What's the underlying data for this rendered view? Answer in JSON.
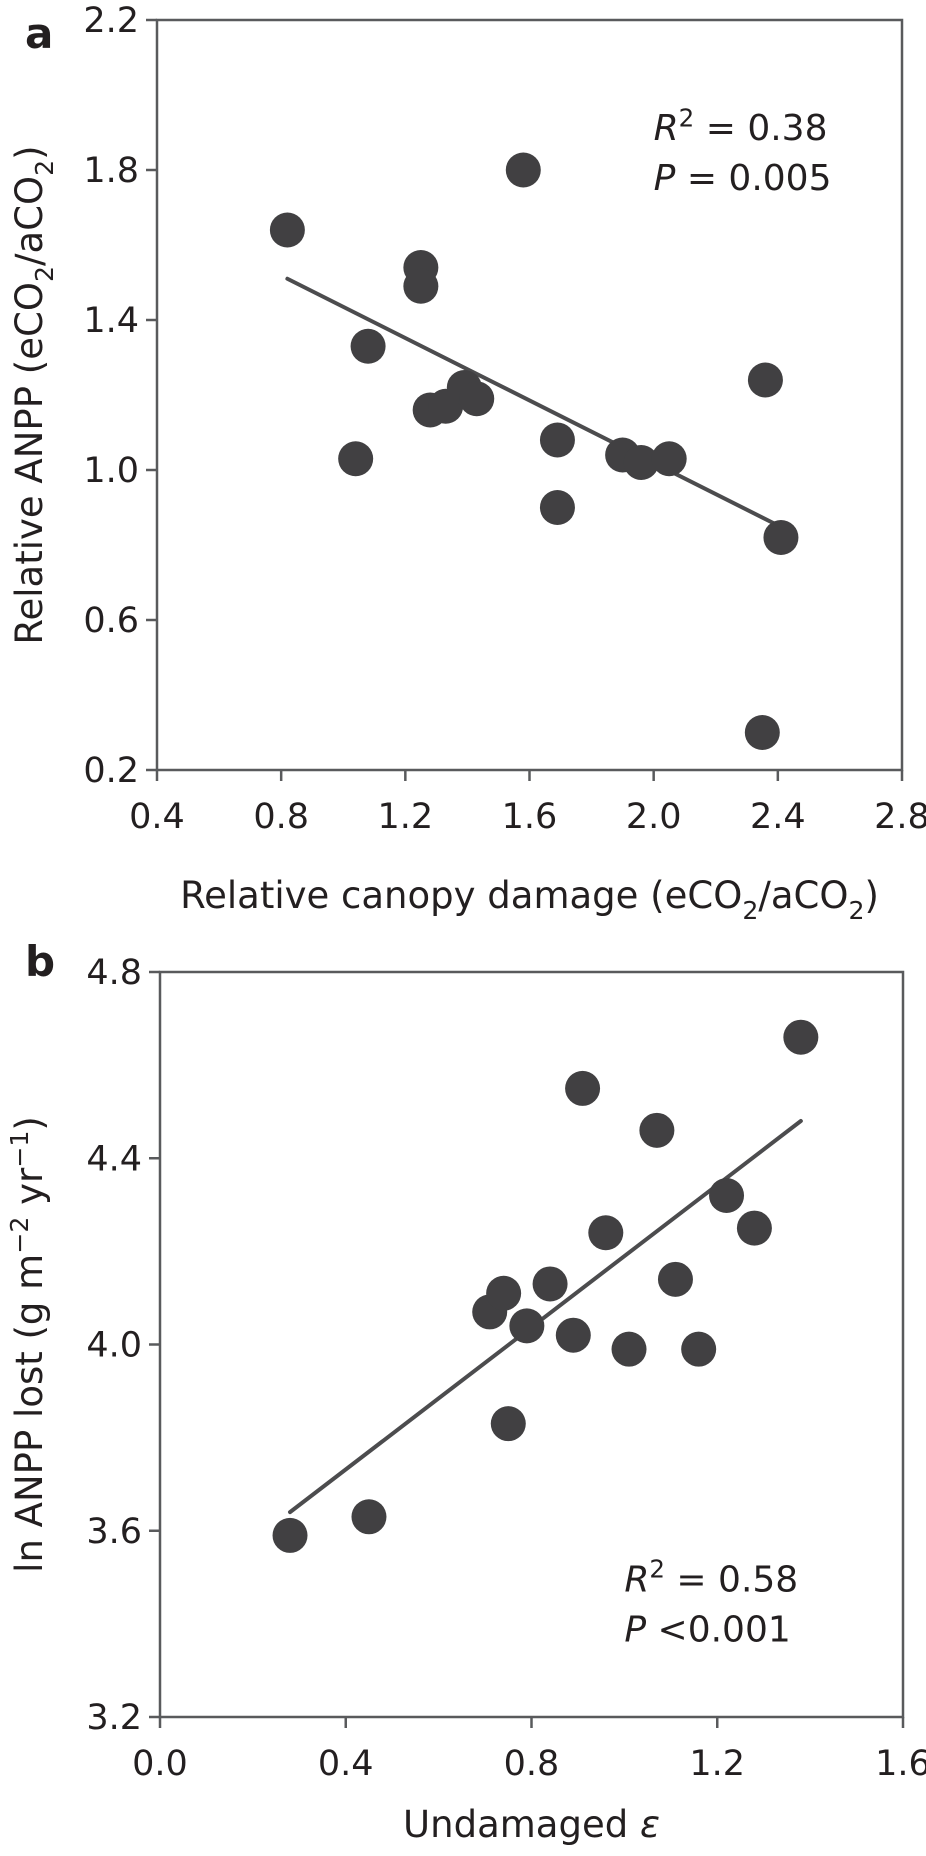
{
  "figure": {
    "colors": {
      "background": "#ffffff",
      "marker": "#414042",
      "regression_line": "#4c4c4e",
      "frame": "#595a5c",
      "text": "#231f20"
    }
  },
  "chart_data": [
    {
      "type": "scatter",
      "panel_label": "a",
      "xlabel_tokens": [
        {
          "t": "Relative canopy damage (eCO"
        },
        {
          "t": "2",
          "s": "sub"
        },
        {
          "t": "/aCO"
        },
        {
          "t": "2",
          "s": "sub"
        },
        {
          "t": ")"
        }
      ],
      "ylabel_tokens": [
        {
          "t": "Relative ANPP (eCO"
        },
        {
          "t": "2",
          "s": "sub"
        },
        {
          "t": "/aCO"
        },
        {
          "t": "2",
          "s": "sub"
        },
        {
          "t": ")"
        }
      ],
      "xlim": [
        0.4,
        2.8
      ],
      "ylim": [
        0.2,
        2.2
      ],
      "x_ticks": [
        {
          "v": 0.4,
          "label": "0.4"
        },
        {
          "v": 0.8,
          "label": "0.8"
        },
        {
          "v": 1.2,
          "label": "1.2"
        },
        {
          "v": 1.6,
          "label": "1.6"
        },
        {
          "v": 2.0,
          "label": "2.0"
        },
        {
          "v": 2.4,
          "label": "2.4"
        },
        {
          "v": 2.8,
          "label": "2.8"
        }
      ],
      "y_ticks": [
        {
          "v": 0.2,
          "label": "0.2"
        },
        {
          "v": 0.6,
          "label": "0.6"
        },
        {
          "v": 1.0,
          "label": "1.0"
        },
        {
          "v": 1.4,
          "label": "1.4"
        },
        {
          "v": 1.8,
          "label": "1.8"
        },
        {
          "v": 2.2,
          "label": "2.2"
        }
      ],
      "points": [
        [
          0.82,
          1.64
        ],
        [
          1.08,
          1.33
        ],
        [
          1.04,
          1.03
        ],
        [
          1.25,
          1.54
        ],
        [
          1.25,
          1.49
        ],
        [
          1.28,
          1.16
        ],
        [
          1.33,
          1.17
        ],
        [
          1.39,
          1.22
        ],
        [
          1.43,
          1.19
        ],
        [
          1.58,
          1.8
        ],
        [
          1.69,
          1.08
        ],
        [
          1.69,
          0.9
        ],
        [
          1.9,
          1.04
        ],
        [
          1.96,
          1.02
        ],
        [
          2.05,
          1.03
        ],
        [
          2.36,
          1.24
        ],
        [
          2.41,
          0.82
        ],
        [
          2.35,
          0.3
        ]
      ],
      "regression_line": {
        "x1": 0.82,
        "y1": 1.51,
        "x2": 2.43,
        "y2": 0.84
      },
      "annotation": {
        "anchor": [
          2.0,
          1.88
        ],
        "lines": [
          [
            {
              "t": "R",
              "s": "i"
            },
            {
              "t": "2",
              "s": "sup"
            },
            {
              "t": " = 0.38"
            }
          ],
          [
            {
              "t": "P",
              "s": "i"
            },
            {
              "t": " = 0.005"
            }
          ]
        ]
      }
    },
    {
      "type": "scatter",
      "panel_label": "b",
      "xlabel_tokens": [
        {
          "t": "Undamaged "
        },
        {
          "t": "ε",
          "s": "i"
        }
      ],
      "ylabel_tokens": [
        {
          "t": "ln ANPP lost (g m"
        },
        {
          "t": "−2",
          "s": "sup"
        },
        {
          "t": " yr"
        },
        {
          "t": "−1",
          "s": "sup"
        },
        {
          "t": ")"
        }
      ],
      "xlim": [
        0.0,
        1.6
      ],
      "ylim": [
        3.2,
        4.8
      ],
      "x_ticks": [
        {
          "v": 0.0,
          "label": "0.0"
        },
        {
          "v": 0.4,
          "label": "0.4"
        },
        {
          "v": 0.8,
          "label": "0.8"
        },
        {
          "v": 1.2,
          "label": "1.2"
        },
        {
          "v": 1.6,
          "label": "1.6"
        }
      ],
      "y_ticks": [
        {
          "v": 3.2,
          "label": "3.2"
        },
        {
          "v": 3.6,
          "label": "3.6"
        },
        {
          "v": 4.0,
          "label": "4.0"
        },
        {
          "v": 4.4,
          "label": "4.4"
        },
        {
          "v": 4.8,
          "label": "4.8"
        }
      ],
      "points": [
        [
          0.28,
          3.59
        ],
        [
          0.45,
          3.63
        ],
        [
          0.75,
          3.83
        ],
        [
          0.71,
          4.07
        ],
        [
          0.74,
          4.11
        ],
        [
          0.79,
          4.04
        ],
        [
          0.84,
          4.13
        ],
        [
          0.89,
          4.02
        ],
        [
          0.91,
          4.55
        ],
        [
          0.96,
          4.24
        ],
        [
          1.01,
          3.99
        ],
        [
          1.07,
          4.46
        ],
        [
          1.11,
          4.14
        ],
        [
          1.16,
          3.99
        ],
        [
          1.22,
          4.32
        ],
        [
          1.28,
          4.25
        ],
        [
          1.38,
          4.66
        ]
      ],
      "regression_line": {
        "x1": 0.28,
        "y1": 3.64,
        "x2": 1.38,
        "y2": 4.48
      },
      "annotation": {
        "anchor": [
          1.0,
          3.47
        ],
        "lines": [
          [
            {
              "t": "R",
              "s": "i"
            },
            {
              "t": "2",
              "s": "sup"
            },
            {
              "t": " = 0.58"
            }
          ],
          [
            {
              "t": "P",
              "s": "i"
            },
            {
              "t": " <0.001"
            }
          ]
        ]
      }
    }
  ]
}
